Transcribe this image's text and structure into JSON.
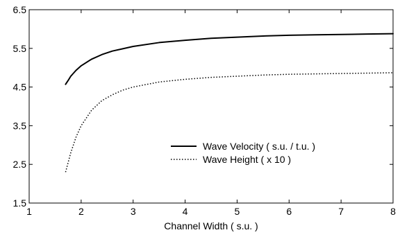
{
  "chart_data": {
    "type": "line",
    "title": "",
    "xlabel": "Channel Width ( s.u. )",
    "ylabel": "",
    "xlim": [
      1,
      8
    ],
    "ylim": [
      1.5,
      6.5
    ],
    "xticks": [
      1,
      2,
      3,
      4,
      5,
      6,
      7,
      8
    ],
    "xtick_labels": [
      "1",
      "2",
      "3",
      "4",
      "5",
      "6",
      "7",
      "8"
    ],
    "yticks": [
      1.5,
      2.5,
      3.5,
      4.5,
      5.5,
      6.5
    ],
    "ytick_labels": [
      "1.5",
      "2.5",
      "3.5",
      "4.5",
      "5.5",
      "6.5"
    ],
    "grid": false,
    "legend_position": "center-right",
    "series": [
      {
        "name": "Wave Velocity ( s.u. / t.u. )",
        "style": "solid",
        "color": "#000000",
        "x": [
          1.7,
          1.75,
          1.8,
          1.9,
          2.0,
          2.2,
          2.4,
          2.6,
          2.8,
          3.0,
          3.5,
          4.0,
          4.5,
          5.0,
          5.5,
          6.0,
          6.5,
          7.0,
          7.5,
          8.0
        ],
        "y": [
          4.57,
          4.67,
          4.78,
          4.93,
          5.05,
          5.22,
          5.34,
          5.43,
          5.49,
          5.55,
          5.65,
          5.71,
          5.76,
          5.79,
          5.82,
          5.84,
          5.85,
          5.86,
          5.87,
          5.88
        ]
      },
      {
        "name": "Wave Height ( x 10 )",
        "style": "dotted",
        "color": "#000000",
        "x": [
          1.7,
          1.75,
          1.8,
          1.9,
          2.0,
          2.2,
          2.4,
          2.6,
          2.8,
          3.0,
          3.5,
          4.0,
          4.5,
          5.0,
          5.5,
          6.0,
          6.5,
          7.0,
          7.5,
          8.0
        ],
        "y": [
          2.3,
          2.55,
          2.8,
          3.2,
          3.5,
          3.9,
          4.15,
          4.3,
          4.42,
          4.5,
          4.63,
          4.7,
          4.75,
          4.78,
          4.81,
          4.83,
          4.84,
          4.85,
          4.86,
          4.87
        ]
      }
    ]
  }
}
